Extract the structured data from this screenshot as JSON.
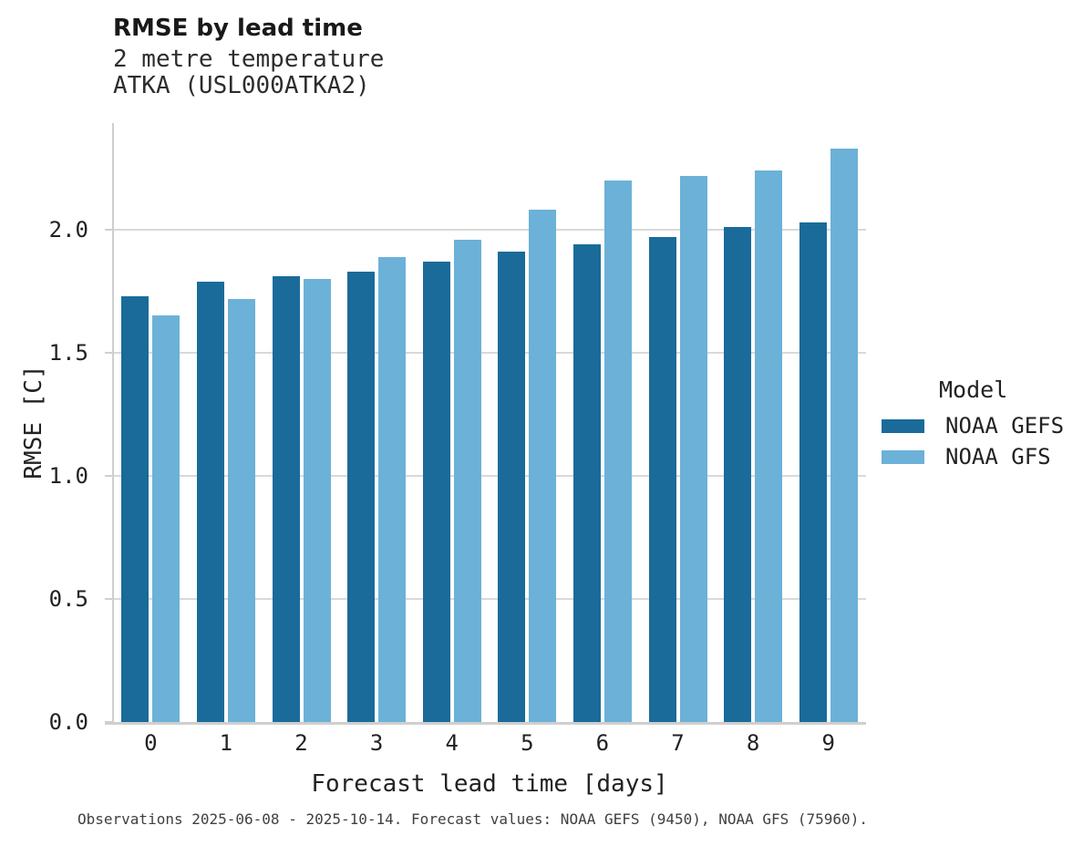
{
  "header": {
    "title": "RMSE by lead time",
    "subtitle_line1": "2 metre temperature",
    "subtitle_line2": "ATKA (USL000ATKA2)"
  },
  "chart_data": {
    "type": "bar",
    "title": "RMSE by lead time",
    "subtitle": [
      "2 metre temperature",
      "ATKA (USL000ATKA2)"
    ],
    "categories": [
      "0",
      "1",
      "2",
      "3",
      "4",
      "5",
      "6",
      "7",
      "8",
      "9"
    ],
    "series": [
      {
        "name": "NOAA GEFS",
        "color": "#1a6b9a",
        "values": [
          1.73,
          1.79,
          1.81,
          1.83,
          1.87,
          1.91,
          1.94,
          1.97,
          2.01,
          2.03
        ]
      },
      {
        "name": "NOAA GFS",
        "color": "#6cb1d8",
        "values": [
          1.65,
          1.72,
          1.8,
          1.89,
          1.96,
          2.08,
          2.2,
          2.22,
          2.24,
          2.33
        ]
      }
    ],
    "xlabel": "Forecast lead time [days]",
    "ylabel": "RMSE [C]",
    "ylim": [
      0,
      2.433
    ],
    "ytick_values": [
      0,
      0.5,
      1,
      1.5,
      2
    ],
    "ytick_labels": [
      "0.0",
      "0.5",
      "1.0",
      "1.5",
      "2.0"
    ],
    "grid": true,
    "legend_position": "right"
  },
  "legend": {
    "title": "Model"
  },
  "caption": "Observations 2025-06-08 - 2025-10-14. Forecast values: NOAA GEFS (9450), NOAA GFS (75960).",
  "colors": {
    "grid": "#d9d9d9",
    "axis": "#cfcfcf",
    "background": "#ffffff"
  }
}
